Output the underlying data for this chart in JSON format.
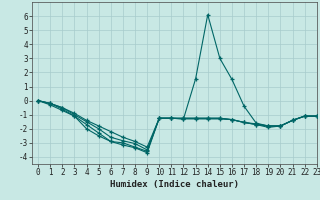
{
  "xlabel": "Humidex (Indice chaleur)",
  "xlim": [
    -0.5,
    23
  ],
  "ylim": [
    -4.5,
    7
  ],
  "yticks": [
    -4,
    -3,
    -2,
    -1,
    0,
    1,
    2,
    3,
    4,
    5,
    6
  ],
  "xticks": [
    0,
    1,
    2,
    3,
    4,
    5,
    6,
    7,
    8,
    9,
    10,
    11,
    12,
    13,
    14,
    15,
    16,
    17,
    18,
    19,
    20,
    21,
    22,
    23
  ],
  "bg_color": "#c8e8e4",
  "grid_color": "#a8cccc",
  "line_color": "#006666",
  "lines": [
    [
      0.0,
      -0.2,
      -0.6,
      -1.1,
      -1.7,
      -2.3,
      -2.9,
      -3.0,
      -3.3,
      -3.6,
      -1.25,
      -1.25,
      -1.3,
      1.55,
      6.1,
      3.0,
      1.5,
      -0.4,
      -1.6,
      -1.8,
      -1.8,
      -1.4,
      -1.1,
      -1.1
    ],
    [
      0.0,
      -0.3,
      -0.7,
      -1.1,
      -2.0,
      -2.5,
      -2.9,
      -3.15,
      -3.35,
      -3.7,
      -1.25,
      -1.25,
      -1.3,
      -1.3,
      -1.3,
      -1.3,
      -1.35,
      -1.55,
      -1.7,
      -1.9,
      -1.8,
      -1.4,
      -1.1,
      -1.1
    ],
    [
      0.0,
      -0.2,
      -0.5,
      -1.0,
      -1.5,
      -2.0,
      -2.6,
      -2.85,
      -3.05,
      -3.5,
      -1.25,
      -1.25,
      -1.25,
      -1.25,
      -1.25,
      -1.25,
      -1.35,
      -1.55,
      -1.7,
      -1.8,
      -1.8,
      -1.4,
      -1.1,
      -1.1
    ],
    [
      0.0,
      -0.2,
      -0.5,
      -0.9,
      -1.4,
      -1.8,
      -2.2,
      -2.6,
      -2.9,
      -3.3,
      -1.25,
      -1.25,
      -1.25,
      -1.25,
      -1.25,
      -1.25,
      -1.35,
      -1.55,
      -1.65,
      -1.8,
      -1.8,
      -1.4,
      -1.1,
      -1.1
    ]
  ]
}
